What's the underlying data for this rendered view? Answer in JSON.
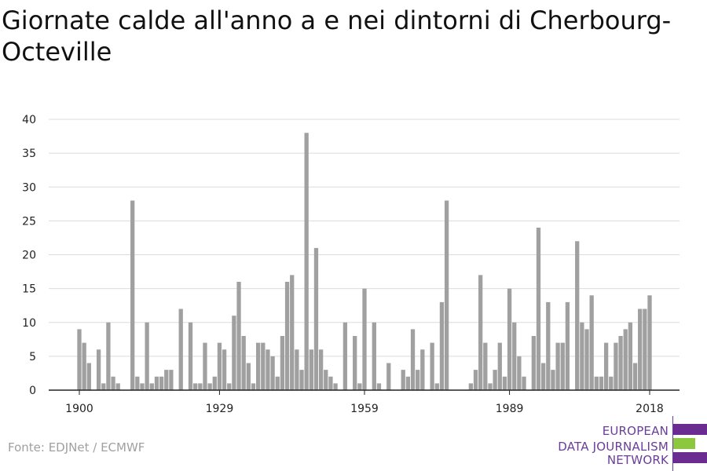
{
  "chart_data": {
    "type": "bar",
    "title": "Giornate calde all'anno a e nei dintorni di Cherbourg-Octeville",
    "x_start": 1900,
    "x_end": 2018,
    "x_ticks": [
      1900,
      1929,
      1959,
      1989,
      2018
    ],
    "y_ticks": [
      0,
      5,
      10,
      15,
      20,
      25,
      30,
      35,
      40
    ],
    "ylim": [
      0,
      40
    ],
    "grid": true,
    "bar_color": "#a0a0a0",
    "values": [
      9,
      7,
      4,
      0,
      6,
      1,
      10,
      2,
      1,
      0,
      0,
      28,
      2,
      1,
      10,
      1,
      2,
      2,
      3,
      3,
      0,
      12,
      0,
      10,
      1,
      1,
      7,
      1,
      2,
      7,
      6,
      1,
      11,
      16,
      8,
      4,
      1,
      7,
      7,
      6,
      5,
      2,
      8,
      16,
      17,
      6,
      3,
      38,
      6,
      21,
      6,
      3,
      2,
      1,
      0,
      10,
      0,
      8,
      1,
      15,
      0,
      10,
      1,
      0,
      4,
      0,
      0,
      3,
      2,
      9,
      3,
      6,
      0,
      7,
      1,
      13,
      28,
      0,
      0,
      0,
      0,
      1,
      3,
      17,
      7,
      1,
      3,
      7,
      2,
      15,
      10,
      5,
      2,
      0,
      8,
      24,
      4,
      13,
      3,
      7,
      7,
      13,
      0,
      22,
      10,
      9,
      14,
      2,
      2,
      7,
      2,
      7,
      8,
      9,
      10,
      4,
      12,
      12,
      14
    ]
  },
  "source": "Fonte: EDJNet / ECMWF",
  "logo": {
    "lines": [
      "EUROPEAN",
      "DATA JOURNALISM",
      "NETWORK"
    ],
    "colors": [
      "#6a2c91",
      "#8dc63f",
      "#6a2c91"
    ]
  }
}
